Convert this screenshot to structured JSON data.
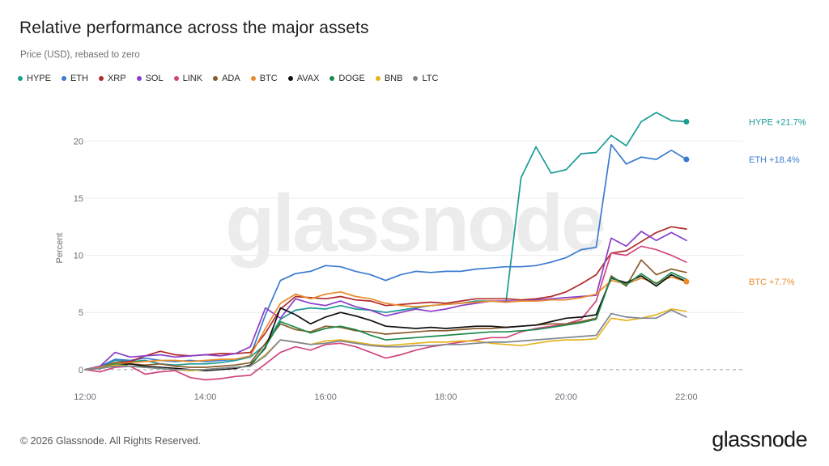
{
  "header": {
    "title": "Relative performance across the major assets",
    "subtitle": "Price (USD), rebased to zero"
  },
  "footer": {
    "copyright": "© 2026 Glassnode. All Rights Reserved.",
    "brand": "glassnode"
  },
  "watermark": "glassnode",
  "chart_data": {
    "type": "line",
    "ylabel": "Percent",
    "xlabel": "",
    "ylim": [
      -1.5,
      23.5
    ],
    "yticks": [
      0,
      5,
      10,
      15,
      20
    ],
    "xlim": [
      "12:00",
      "22:30"
    ],
    "xticks": [
      "12:00",
      "14:00",
      "16:00",
      "18:00",
      "20:00",
      "22:00"
    ],
    "grid": "horizontal",
    "zero_line": "dashed",
    "legend_position": "top-left",
    "x": [
      "12:00",
      "12:15",
      "12:30",
      "12:45",
      "13:00",
      "13:15",
      "13:30",
      "13:45",
      "14:00",
      "14:15",
      "14:30",
      "14:45",
      "15:00",
      "15:15",
      "15:30",
      "15:45",
      "16:00",
      "16:15",
      "16:30",
      "16:45",
      "17:00",
      "17:15",
      "17:30",
      "17:45",
      "18:00",
      "18:15",
      "18:30",
      "18:45",
      "19:00",
      "19:15",
      "19:30",
      "19:45",
      "20:00",
      "20:15",
      "20:30",
      "20:45",
      "21:00",
      "21:15",
      "21:30",
      "21:45",
      "22:00"
    ],
    "series": [
      {
        "name": "HYPE",
        "color": "#1a9b93",
        "end_label": "HYPE +21.7%",
        "values": [
          0,
          0.2,
          0.8,
          0.7,
          0.8,
          0.5,
          0.4,
          0.5,
          0.5,
          0.6,
          0.8,
          1.1,
          2.2,
          4.4,
          5.2,
          5.4,
          5.3,
          5.6,
          5.3,
          5.2,
          5.0,
          5.2,
          5.4,
          5.6,
          5.7,
          5.8,
          6.0,
          6.0,
          5.9,
          16.8,
          19.5,
          17.2,
          17.5,
          18.9,
          19.0,
          20.5,
          19.6,
          21.7,
          22.5,
          21.8,
          21.7
        ]
      },
      {
        "name": "ETH",
        "color": "#3a7bd0",
        "end_label": "ETH +18.4%",
        "values": [
          0,
          0.3,
          0.9,
          0.8,
          1.0,
          0.8,
          0.7,
          0.8,
          0.7,
          0.8,
          0.9,
          1.2,
          4.8,
          7.8,
          8.4,
          8.6,
          9.1,
          9.0,
          8.6,
          8.3,
          7.8,
          8.3,
          8.6,
          8.5,
          8.6,
          8.6,
          8.8,
          8.9,
          9.0,
          9.0,
          9.1,
          9.4,
          9.8,
          10.5,
          10.7,
          19.7,
          18.0,
          18.6,
          18.4,
          19.2,
          18.4
        ]
      },
      {
        "name": "XRP",
        "color": "#b22a2a",
        "values": [
          0,
          0.2,
          0.6,
          0.7,
          1.2,
          1.6,
          1.3,
          1.2,
          1.3,
          1.4,
          1.4,
          1.5,
          3.2,
          5.3,
          6.4,
          6.3,
          6.2,
          6.4,
          6.1,
          6.0,
          5.6,
          5.7,
          5.8,
          5.9,
          5.8,
          6.0,
          6.2,
          6.2,
          6.2,
          6.1,
          6.2,
          6.4,
          6.8,
          7.5,
          8.3,
          10.2,
          10.4,
          11.2,
          12.0,
          12.5,
          12.3
        ]
      },
      {
        "name": "SOL",
        "color": "#8a3ec9",
        "values": [
          0,
          0.3,
          1.5,
          1.1,
          1.2,
          1.3,
          1.1,
          1.2,
          1.3,
          1.2,
          1.4,
          2.0,
          5.4,
          4.5,
          6.2,
          5.8,
          5.6,
          6.0,
          5.5,
          5.2,
          4.7,
          5.0,
          5.3,
          5.1,
          5.3,
          5.6,
          5.8,
          6.0,
          6.0,
          6.0,
          6.1,
          6.2,
          6.3,
          6.4,
          6.5,
          11.5,
          10.8,
          12.1,
          11.3,
          12.0,
          11.3
        ]
      },
      {
        "name": "LINK",
        "color": "#d14680",
        "values": [
          0,
          -0.2,
          0.2,
          0.3,
          -0.4,
          -0.2,
          -0.1,
          -0.7,
          -0.9,
          -0.8,
          -0.6,
          -0.5,
          0.5,
          1.5,
          2.0,
          1.7,
          2.2,
          2.3,
          2.0,
          1.5,
          1.0,
          1.3,
          1.7,
          2.0,
          2.2,
          2.4,
          2.6,
          2.8,
          2.8,
          3.3,
          3.6,
          3.8,
          4.0,
          4.4,
          6.0,
          10.2,
          10.0,
          10.8,
          10.5,
          10.0,
          9.4
        ]
      },
      {
        "name": "ADA",
        "color": "#8b5a2b",
        "values": [
          0,
          0.1,
          0.6,
          0.5,
          0.4,
          0.5,
          0.3,
          0.2,
          0.2,
          0.3,
          0.4,
          0.6,
          2.3,
          4.0,
          3.5,
          3.3,
          3.8,
          3.7,
          3.4,
          3.3,
          3.1,
          3.2,
          3.3,
          3.4,
          3.4,
          3.5,
          3.6,
          3.6,
          3.7,
          3.8,
          3.9,
          4.0,
          4.0,
          4.2,
          4.5,
          8.2,
          7.3,
          9.6,
          8.3,
          8.8,
          8.5
        ]
      },
      {
        "name": "BTC",
        "color": "#e98b2c",
        "end_label": "BTC +7.7%",
        "values": [
          0,
          0.2,
          0.5,
          0.6,
          0.7,
          0.8,
          0.8,
          0.7,
          0.8,
          0.9,
          0.9,
          1.2,
          3.6,
          5.8,
          6.6,
          6.2,
          6.6,
          6.8,
          6.4,
          6.2,
          5.8,
          5.6,
          5.5,
          5.6,
          5.7,
          5.8,
          5.9,
          6.0,
          5.9,
          6.0,
          6.0,
          6.1,
          6.1,
          6.3,
          6.6,
          7.8,
          7.5,
          8.0,
          7.6,
          8.1,
          7.7
        ]
      },
      {
        "name": "AVAX",
        "color": "#111111",
        "values": [
          0,
          0.1,
          0.4,
          0.5,
          0.3,
          0.2,
          0.1,
          0.0,
          -0.1,
          0.0,
          0.1,
          0.4,
          1.9,
          5.4,
          4.8,
          4.0,
          4.6,
          5.0,
          4.7,
          4.3,
          3.8,
          3.7,
          3.6,
          3.7,
          3.6,
          3.7,
          3.8,
          3.8,
          3.7,
          3.8,
          3.9,
          4.2,
          4.5,
          4.6,
          4.8,
          8.0,
          7.6,
          8.2,
          7.3,
          8.3,
          7.7
        ]
      },
      {
        "name": "DOGE",
        "color": "#1f8a4c",
        "values": [
          0,
          0.1,
          0.5,
          0.3,
          0.2,
          0.1,
          0.0,
          -0.1,
          0.0,
          0.1,
          0.2,
          0.3,
          2.0,
          4.2,
          3.7,
          3.2,
          3.6,
          3.8,
          3.5,
          3.0,
          2.6,
          2.7,
          2.8,
          2.9,
          3.0,
          3.1,
          3.2,
          3.3,
          3.3,
          3.4,
          3.5,
          3.7,
          3.9,
          4.1,
          4.4,
          8.1,
          7.4,
          8.4,
          7.5,
          8.5,
          7.9
        ]
      },
      {
        "name": "BNB",
        "color": "#e6b41f",
        "values": [
          0,
          0.1,
          0.4,
          0.3,
          0.2,
          0.1,
          0.0,
          -0.1,
          0.0,
          0.1,
          0.2,
          0.3,
          1.3,
          2.6,
          2.4,
          2.2,
          2.5,
          2.6,
          2.4,
          2.2,
          2.1,
          2.2,
          2.3,
          2.4,
          2.4,
          2.5,
          2.5,
          2.3,
          2.2,
          2.1,
          2.3,
          2.5,
          2.6,
          2.6,
          2.7,
          4.5,
          4.3,
          4.5,
          4.8,
          5.3,
          5.1
        ]
      },
      {
        "name": "LTC",
        "color": "#7d8590",
        "values": [
          0,
          0.1,
          0.3,
          0.3,
          0.2,
          0.1,
          0.0,
          0.0,
          0.0,
          0.1,
          0.2,
          0.3,
          1.2,
          2.6,
          2.4,
          2.2,
          2.3,
          2.5,
          2.3,
          2.1,
          2.0,
          2.0,
          2.1,
          2.1,
          2.2,
          2.2,
          2.3,
          2.4,
          2.4,
          2.5,
          2.6,
          2.7,
          2.8,
          2.9,
          3.0,
          4.9,
          4.6,
          4.5,
          4.5,
          5.2,
          4.6
        ]
      }
    ]
  }
}
